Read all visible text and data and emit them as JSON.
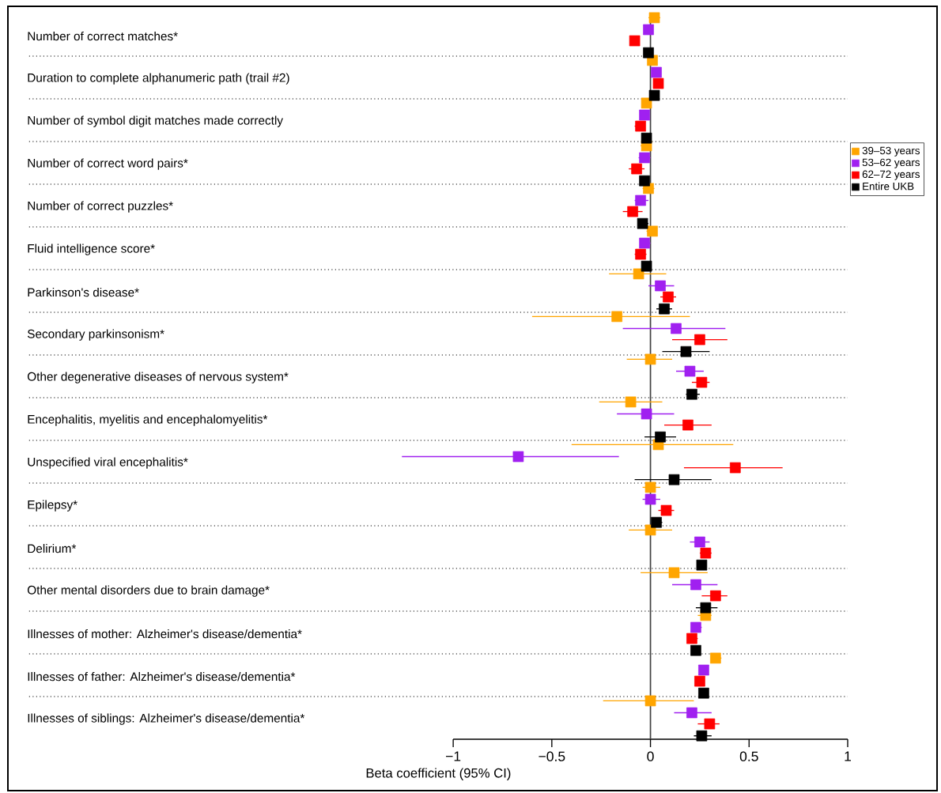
{
  "chart_data": {
    "type": "scatter",
    "orientation": "horizontal",
    "xlabel": "Beta coefficient (95% CI)",
    "categories": [
      "Number of correct matches*",
      "Duration to complete alphanumeric path (trail #2)",
      "Number of symbol digit matches made correctly",
      "Number of correct word pairs*",
      "Number of correct puzzles*",
      "Fluid intelligence score*",
      "Parkinson's disease*",
      "Secondary parkinsonism*",
      "Other degenerative diseases of nervous system*",
      "Encephalitis, myelitis and encephalomyelitis*",
      "Unspecified viral encephalitis*",
      "Epilepsy*",
      "Delirium*",
      "Other mental disorders due to brain damage*",
      "Illnesses of mother: Alzheimer's disease/dementia*",
      "Illnesses of father: Alzheimer's disease/dementia*",
      "Illnesses of siblings: Alzheimer's disease/dementia*"
    ],
    "xlim": [
      -3.15,
      1
    ],
    "xticks": [
      {
        "value": -1,
        "label": "−1"
      },
      {
        "value": -0.5,
        "label": "−0.5"
      },
      0,
      0.5,
      1
    ],
    "marker": "square",
    "legend": "right",
    "ref_lines": [
      {
        "axis": "x",
        "value": 0
      }
    ],
    "series": [
      {
        "name": "39–53 years",
        "color": "#ffa500",
        "values": [
          0.02,
          0.01,
          -0.02,
          -0.02,
          -0.01,
          0.01,
          -0.06,
          -0.17,
          0.0,
          -0.1,
          0.04,
          0.0,
          0.0,
          0.12,
          0.28,
          0.33,
          0.0
        ],
        "errors": [
          [
            -0.01,
            0.05
          ],
          null,
          null,
          [
            -0.05,
            0.0
          ],
          [
            -0.04,
            0.02
          ],
          [
            -0.02,
            0.02
          ],
          [
            -0.21,
            0.08
          ],
          [
            -0.6,
            0.2
          ],
          [
            -0.12,
            0.11
          ],
          [
            -0.26,
            0.06
          ],
          [
            -0.4,
            0.42
          ],
          [
            -0.04,
            0.05
          ],
          [
            -0.11,
            0.11
          ],
          [
            -0.05,
            0.29
          ],
          [
            0.24,
            0.31
          ],
          [
            0.31,
            0.36
          ],
          [
            -0.24,
            0.22
          ]
        ]
      },
      {
        "name": "53–62 years",
        "color": "#a020f0",
        "values": [
          -0.01,
          0.03,
          -0.03,
          -0.03,
          -0.05,
          -0.03,
          0.05,
          0.13,
          0.2,
          -0.02,
          -0.67,
          0.0,
          0.25,
          0.23,
          0.23,
          0.27,
          0.21
        ],
        "errors": [
          null,
          null,
          null,
          [
            -0.06,
            0.0
          ],
          [
            -0.08,
            -0.01
          ],
          [
            -0.05,
            0.0
          ],
          [
            -0.01,
            0.12
          ],
          [
            -0.14,
            0.38
          ],
          [
            0.13,
            0.27
          ],
          [
            -0.17,
            0.12
          ],
          [
            -1.26,
            -0.16
          ],
          [
            -0.04,
            0.05
          ],
          [
            0.2,
            0.3
          ],
          [
            0.11,
            0.34
          ],
          [
            0.21,
            0.26
          ],
          null,
          [
            0.12,
            0.31
          ]
        ]
      },
      {
        "name": "62–72 years",
        "color": "#ff0000",
        "values": [
          -0.08,
          0.04,
          -0.05,
          -0.07,
          -0.09,
          -0.05,
          0.09,
          0.25,
          0.26,
          0.19,
          0.43,
          0.08,
          0.28,
          0.33,
          0.21,
          0.25,
          0.3
        ],
        "errors": [
          null,
          null,
          [
            -0.08,
            -0.03
          ],
          [
            -0.11,
            -0.03
          ],
          [
            -0.14,
            -0.04
          ],
          [
            -0.08,
            -0.02
          ],
          [
            0.05,
            0.13
          ],
          [
            0.11,
            0.39
          ],
          [
            0.21,
            0.3
          ],
          [
            0.07,
            0.31
          ],
          [
            0.17,
            0.67
          ],
          [
            0.04,
            0.12
          ],
          [
            0.25,
            0.31
          ],
          [
            0.26,
            0.39
          ],
          [
            0.19,
            0.24
          ],
          null,
          [
            0.24,
            0.35
          ]
        ]
      },
      {
        "name": "Entire UKB",
        "color": "#000000",
        "values": [
          -0.01,
          0.02,
          -0.02,
          -0.03,
          -0.04,
          -0.02,
          0.07,
          0.18,
          0.21,
          0.05,
          0.12,
          0.03,
          0.26,
          0.28,
          0.23,
          0.27,
          0.26
        ],
        "errors": [
          null,
          null,
          null,
          null,
          [
            -0.06,
            -0.01
          ],
          null,
          [
            0.03,
            0.11
          ],
          [
            0.06,
            0.3
          ],
          [
            0.18,
            0.25
          ],
          [
            -0.03,
            0.13
          ],
          [
            -0.08,
            0.31
          ],
          [
            0.01,
            0.06
          ],
          [
            0.24,
            0.28
          ],
          [
            0.23,
            0.34
          ],
          null,
          null,
          [
            0.22,
            0.31
          ]
        ]
      }
    ]
  }
}
